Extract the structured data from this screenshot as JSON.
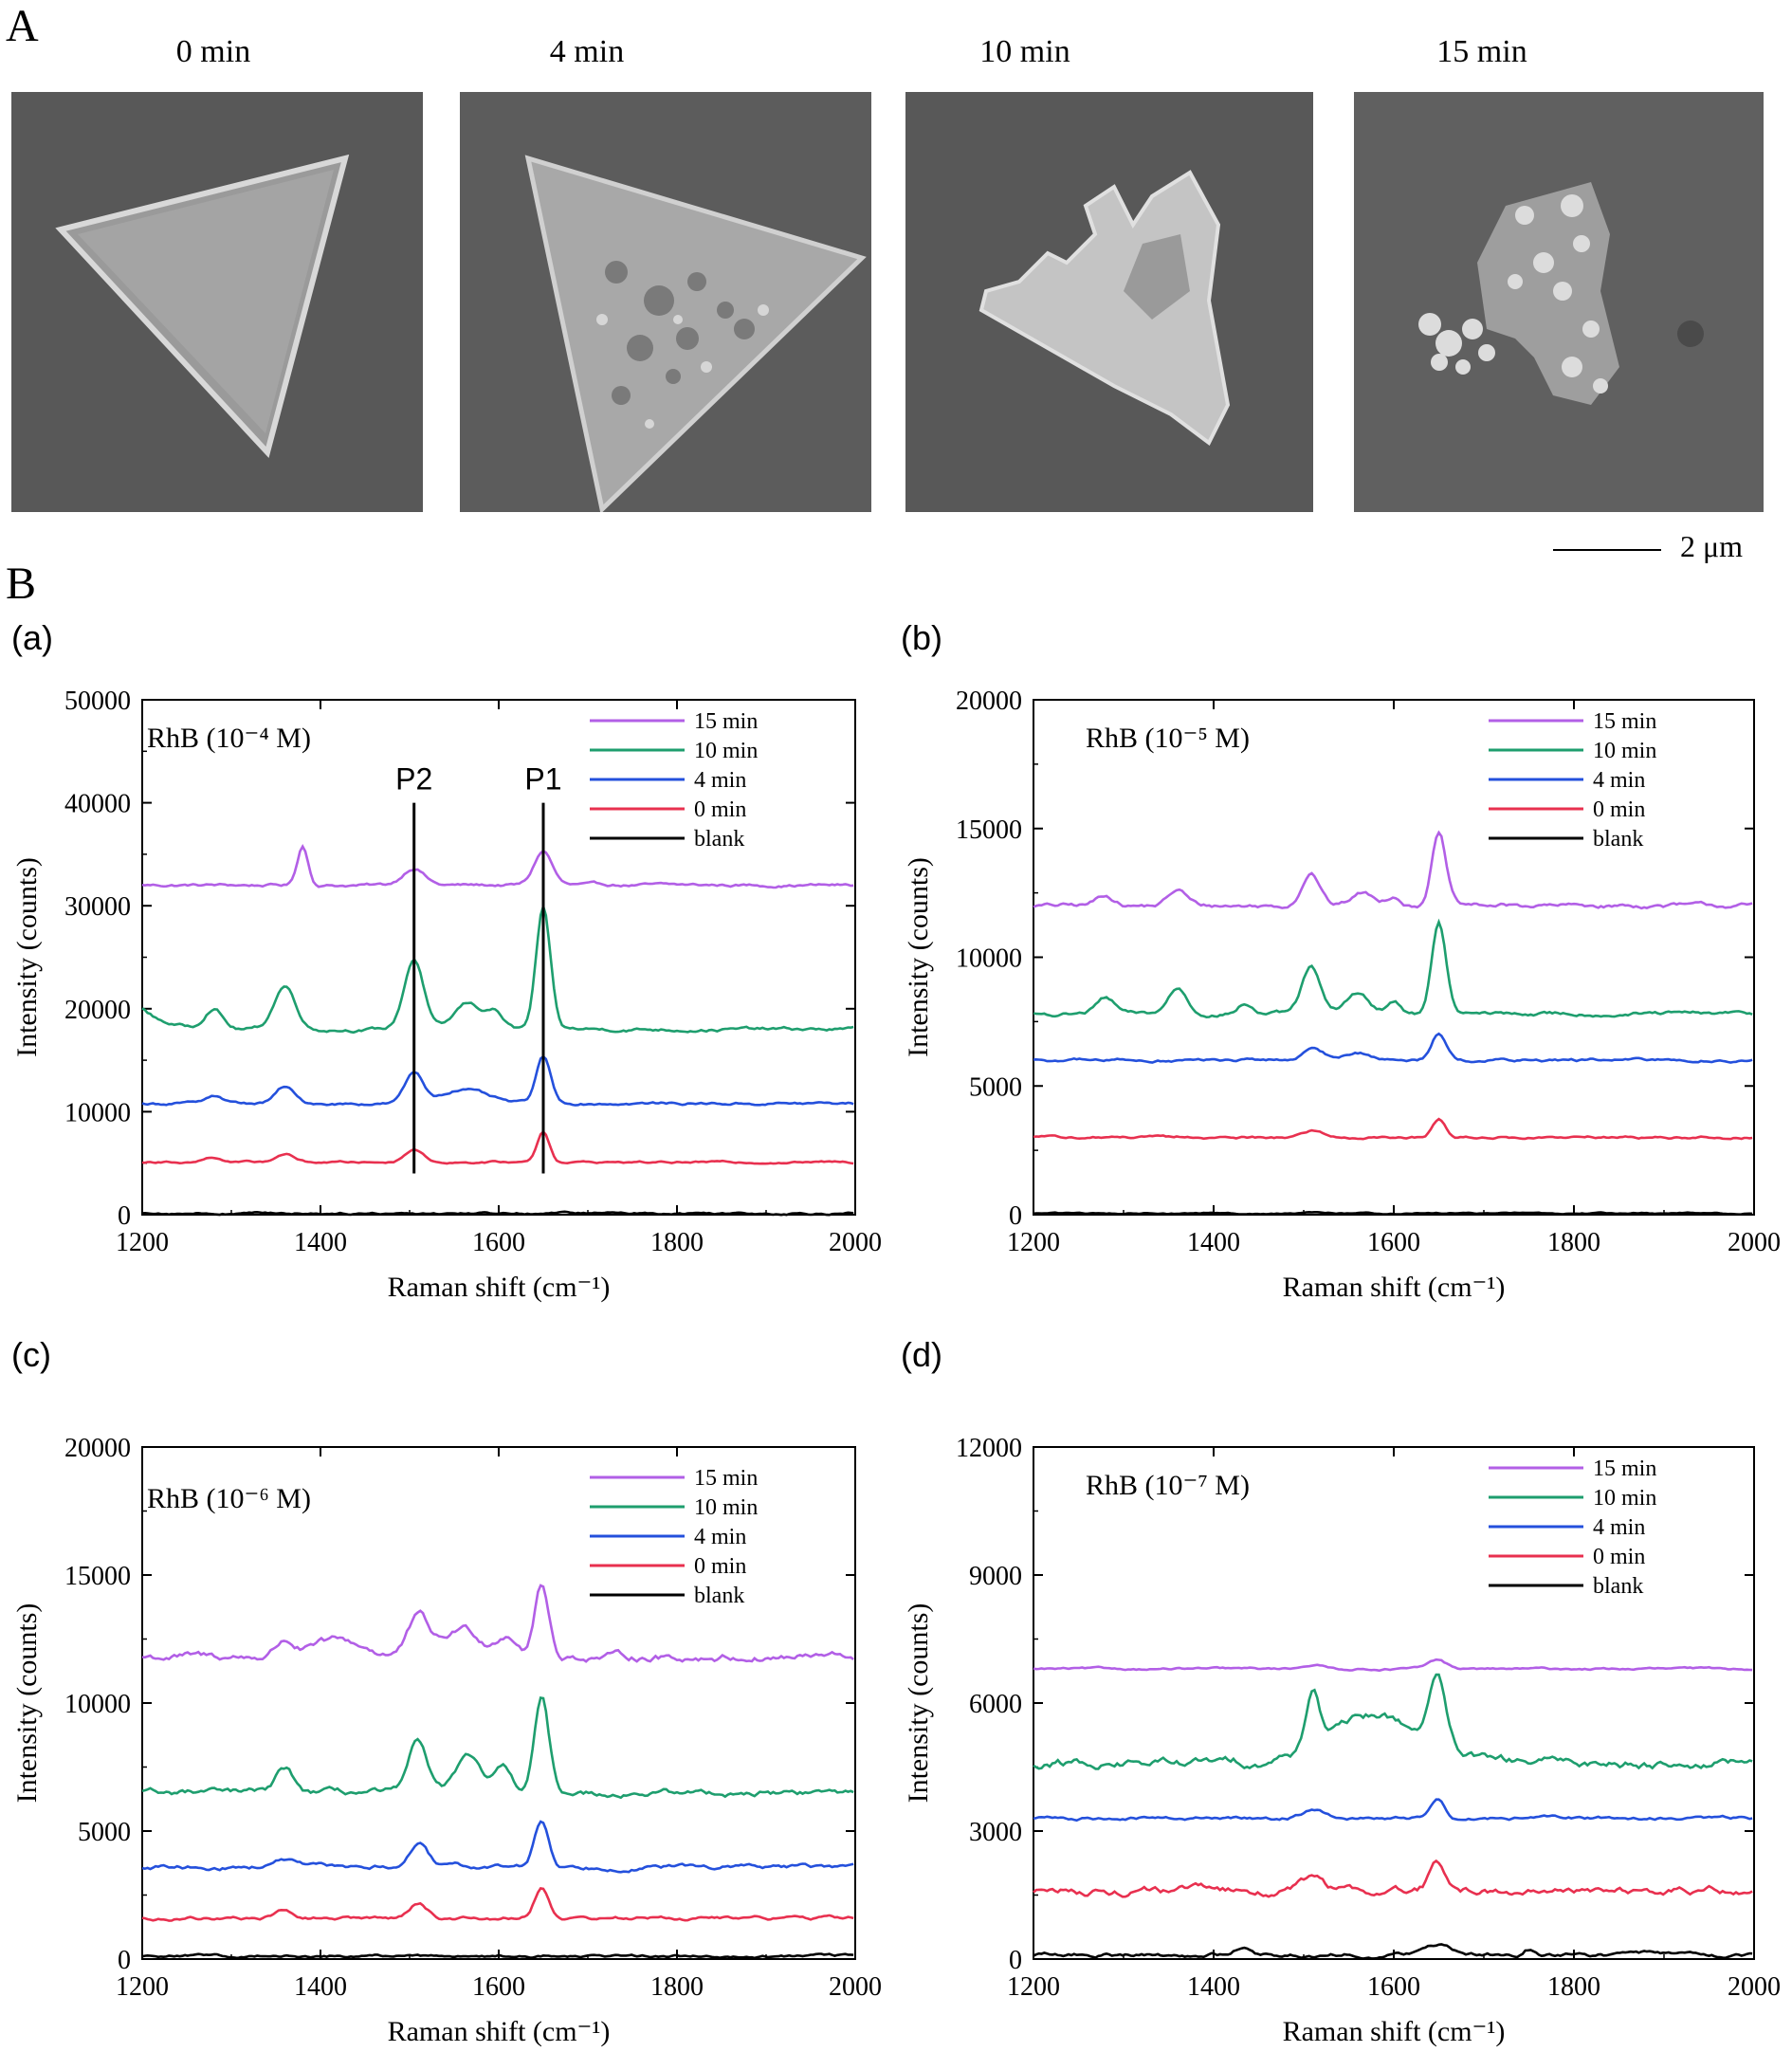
{
  "panel_a": {
    "letter": "A",
    "titles": [
      "0 min",
      "4 min",
      "10 min",
      "15 min"
    ],
    "scale_bar": "2 μm"
  },
  "panel_b": {
    "letter": "B",
    "subpanels": [
      "(a)",
      "(b)",
      "(c)",
      "(d)"
    ]
  },
  "colors": {
    "15 min": "#b25fe6",
    "10 min": "#1e9e6e",
    "4 min": "#2450dc",
    "0 min": "#e8304f",
    "blank": "#000000"
  },
  "chart_data": [
    {
      "type": "line",
      "panel": "(a)",
      "annotation": "RhB (10⁻⁴ M)",
      "xlabel": "Raman shift (cm⁻¹)",
      "ylabel": "Intensity (counts)",
      "xlim": [
        1200,
        2000
      ],
      "ylim": [
        0,
        50000
      ],
      "xticks": [
        1200,
        1400,
        1600,
        1800,
        2000
      ],
      "yticks": [
        0,
        10000,
        20000,
        30000,
        40000,
        50000
      ],
      "vlines": [
        {
          "x": 1505,
          "label": "P2"
        },
        {
          "x": 1650,
          "label": "P1"
        }
      ],
      "legend": "top-right",
      "series": [
        {
          "name": "15 min",
          "baseline": 32000,
          "noise": 300,
          "peaks": [
            [
              1380,
              3800,
              6
            ],
            [
              1505,
              1700,
              12
            ],
            [
              1650,
              3300,
              10
            ]
          ]
        },
        {
          "name": "10 min",
          "baseline": 18000,
          "noise": 350,
          "start": 20000,
          "peaks": [
            [
              1280,
              2000,
              10
            ],
            [
              1360,
              4200,
              12
            ],
            [
              1505,
              6800,
              11
            ],
            [
              1565,
              2500,
              14
            ],
            [
              1595,
              1700,
              10
            ],
            [
              1650,
              11600,
              8
            ]
          ]
        },
        {
          "name": "4 min",
          "baseline": 10800,
          "noise": 280,
          "peaks": [
            [
              1280,
              800,
              10
            ],
            [
              1360,
              1600,
              10
            ],
            [
              1505,
              2900,
              10
            ],
            [
              1560,
              1400,
              25
            ],
            [
              1650,
              4500,
              8
            ]
          ]
        },
        {
          "name": "0 min",
          "baseline": 5100,
          "noise": 200,
          "peaks": [
            [
              1280,
              500,
              10
            ],
            [
              1360,
              800,
              10
            ],
            [
              1505,
              1300,
              10
            ],
            [
              1650,
              3000,
              7
            ]
          ]
        },
        {
          "name": "blank",
          "baseline": 150,
          "noise": 220,
          "peaks": []
        }
      ]
    },
    {
      "type": "line",
      "panel": "(b)",
      "annotation": "RhB (10⁻⁵ M)",
      "xlabel": "Raman shift (cm⁻¹)",
      "ylabel": "Intensity (counts)",
      "xlim": [
        1200,
        2000
      ],
      "ylim": [
        0,
        20000
      ],
      "xticks": [
        1200,
        1400,
        1600,
        1800,
        2000
      ],
      "yticks": [
        0,
        5000,
        10000,
        15000,
        20000
      ],
      "legend": "top-right",
      "series": [
        {
          "name": "15 min",
          "baseline": 12000,
          "noise": 180,
          "peaks": [
            [
              1280,
              400,
              10
            ],
            [
              1360,
              600,
              10
            ],
            [
              1508,
              1300,
              10
            ],
            [
              1565,
              500,
              12
            ],
            [
              1600,
              400,
              8
            ],
            [
              1650,
              2800,
              8
            ]
          ]
        },
        {
          "name": "10 min",
          "baseline": 7800,
          "noise": 160,
          "peaks": [
            [
              1280,
              600,
              10
            ],
            [
              1360,
              1000,
              10
            ],
            [
              1435,
              400,
              8
            ],
            [
              1508,
              1800,
              10
            ],
            [
              1560,
              800,
              12
            ],
            [
              1600,
              500,
              8
            ],
            [
              1650,
              3500,
              8
            ]
          ]
        },
        {
          "name": "4 min",
          "baseline": 6000,
          "noise": 120,
          "peaks": [
            [
              1510,
              400,
              12
            ],
            [
              1560,
              300,
              15
            ],
            [
              1650,
              1100,
              8
            ]
          ]
        },
        {
          "name": "0 min",
          "baseline": 3000,
          "noise": 100,
          "peaks": [
            [
              1510,
              250,
              12
            ],
            [
              1650,
              700,
              7
            ]
          ]
        },
        {
          "name": "blank",
          "baseline": 50,
          "noise": 60,
          "peaks": []
        }
      ]
    },
    {
      "type": "line",
      "panel": "(c)",
      "annotation": "RhB (10⁻⁶ M)",
      "xlabel": "Raman shift (cm⁻¹)",
      "ylabel": "Intensity (counts)",
      "xlim": [
        1200,
        2000
      ],
      "ylim": [
        0,
        20000
      ],
      "xticks": [
        1200,
        1400,
        1600,
        1800,
        2000
      ],
      "yticks": [
        0,
        5000,
        10000,
        15000,
        20000
      ],
      "legend": "top-right",
      "series": [
        {
          "name": "15 min",
          "baseline": 11800,
          "noise": 320,
          "peaks": [
            [
              1360,
              600,
              10
            ],
            [
              1420,
              600,
              30
            ],
            [
              1510,
              1500,
              12
            ],
            [
              1560,
              1100,
              20
            ],
            [
              1610,
              900,
              12
            ],
            [
              1648,
              2800,
              8
            ]
          ]
        },
        {
          "name": "10 min",
          "baseline": 6500,
          "noise": 260,
          "peaks": [
            [
              1360,
              900,
              10
            ],
            [
              1510,
              2000,
              10
            ],
            [
              1565,
              1300,
              14
            ],
            [
              1605,
              900,
              10
            ],
            [
              1648,
              3700,
              8
            ]
          ]
        },
        {
          "name": "4 min",
          "baseline": 3600,
          "noise": 180,
          "peaks": [
            [
              1360,
              300,
              10
            ],
            [
              1510,
              900,
              10
            ],
            [
              1648,
              1800,
              8
            ]
          ]
        },
        {
          "name": "0 min",
          "baseline": 1600,
          "noise": 140,
          "peaks": [
            [
              1360,
              250,
              10
            ],
            [
              1510,
              600,
              10
            ],
            [
              1648,
              1200,
              8
            ]
          ]
        },
        {
          "name": "blank",
          "baseline": 120,
          "noise": 110,
          "peaks": []
        }
      ]
    },
    {
      "type": "line",
      "panel": "(d)",
      "annotation": "RhB (10⁻⁷ M)",
      "xlabel": "Raman shift (cm⁻¹)",
      "ylabel": "Intensity (counts)",
      "xlim": [
        1200,
        2000
      ],
      "ylim": [
        0,
        12000
      ],
      "xticks": [
        1200,
        1400,
        1600,
        1800,
        2000
      ],
      "yticks": [
        0,
        3000,
        6000,
        9000,
        12000
      ],
      "legend": "top-right",
      "series": [
        {
          "name": "15 min",
          "baseline": 6800,
          "noise": 50,
          "peaks": [
            [
              1510,
              100,
              12
            ],
            [
              1648,
              200,
              10
            ]
          ]
        },
        {
          "name": "10 min",
          "baseline": 4600,
          "noise": 220,
          "peaks": [
            [
              1510,
              1300,
              8
            ],
            [
              1580,
              1100,
              50
            ],
            [
              1648,
              1700,
              9
            ]
          ]
        },
        {
          "name": "4 min",
          "baseline": 3300,
          "noise": 80,
          "peaks": [
            [
              1510,
              200,
              12
            ],
            [
              1648,
              500,
              8
            ]
          ]
        },
        {
          "name": "0 min",
          "baseline": 1600,
          "noise": 190,
          "peaks": [
            [
              1510,
              300,
              12
            ],
            [
              1648,
              700,
              8
            ]
          ]
        },
        {
          "name": "blank",
          "baseline": 100,
          "noise": 100,
          "peaks": [
            [
              1430,
              200,
              8
            ],
            [
              1650,
              200,
              15
            ],
            [
              1750,
              150,
              6
            ]
          ]
        }
      ]
    }
  ]
}
